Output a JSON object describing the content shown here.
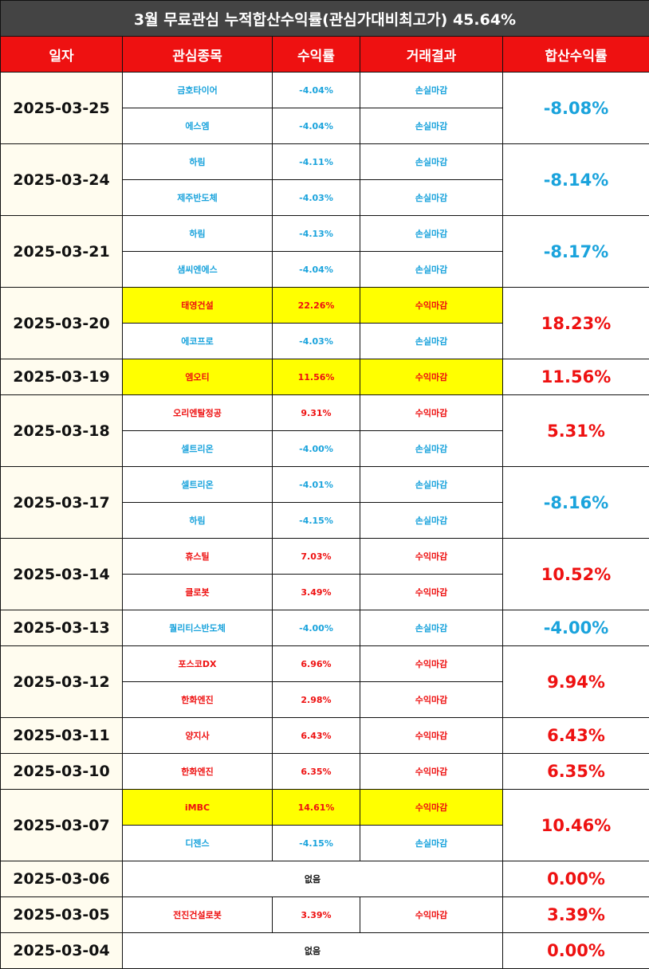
{
  "title": "3월 무료관심 누적합산수익률(관심가대비최고가) 45.64%",
  "header": [
    "일자",
    "관심종목",
    "수익률",
    "거래결과",
    "합산수익률"
  ],
  "rows": [
    {
      "date": "2025-03-25",
      "total": "-8.08%",
      "total_color": "#1aa3dc",
      "items": [
        {
          "stock": "금호타이어",
          "return": "-4.04%",
          "result": "손실마감",
          "color": "#1aa3dc"
        },
        {
          "stock": "에스엠",
          "return": "-4.04%",
          "result": "손실마감",
          "color": "#1aa3dc"
        }
      ]
    },
    {
      "date": "2025-03-24",
      "total": "-8.14%",
      "total_color": "#1aa3dc",
      "items": [
        {
          "stock": "하림",
          "return": "-4.11%",
          "result": "손실마감",
          "color": "#1aa3dc"
        },
        {
          "stock": "제주반도체",
          "return": "-4.03%",
          "result": "손실마감",
          "color": "#1aa3dc"
        }
      ]
    },
    {
      "date": "2025-03-21",
      "total": "-8.17%",
      "total_color": "#1aa3dc",
      "items": [
        {
          "stock": "하림",
          "return": "-4.13%",
          "result": "손실마감",
          "color": "#1aa3dc"
        },
        {
          "stock": "샘씨엔에스",
          "return": "-4.04%",
          "result": "손실마감",
          "color": "#1aa3dc"
        }
      ]
    },
    {
      "date": "2025-03-20",
      "total": "18.23%",
      "total_color": "#ee1111",
      "items": [
        {
          "stock": "태영건설",
          "return": "22.26%",
          "result": "수익마감",
          "color": "#ee1111",
          "highlight": true
        },
        {
          "stock": "에코프로",
          "return": "-4.03%",
          "result": "손실마감",
          "color": "#1aa3dc"
        }
      ]
    },
    {
      "date": "2025-03-19",
      "total": "11.56%",
      "total_color": "#ee1111",
      "items": [
        {
          "stock": "엠오티",
          "return": "11.56%",
          "result": "수익마감",
          "color": "#ee1111",
          "highlight": true
        }
      ]
    },
    {
      "date": "2025-03-18",
      "total": "5.31%",
      "total_color": "#ee1111",
      "items": [
        {
          "stock": "오리엔탈정공",
          "return": "9.31%",
          "result": "수익마감",
          "color": "#ee1111"
        },
        {
          "stock": "셀트리온",
          "return": "-4.00%",
          "result": "손실마감",
          "color": "#1aa3dc"
        }
      ]
    },
    {
      "date": "2025-03-17",
      "total": "-8.16%",
      "total_color": "#1aa3dc",
      "items": [
        {
          "stock": "셀트리온",
          "return": "-4.01%",
          "result": "손실마감",
          "color": "#1aa3dc"
        },
        {
          "stock": "하림",
          "return": "-4.15%",
          "result": "손실마감",
          "color": "#1aa3dc"
        }
      ]
    },
    {
      "date": "2025-03-14",
      "total": "10.52%",
      "total_color": "#ee1111",
      "items": [
        {
          "stock": "휴스틸",
          "return": "7.03%",
          "result": "수익마감",
          "color": "#ee1111"
        },
        {
          "stock": "클로봇",
          "return": "3.49%",
          "result": "수익마감",
          "color": "#ee1111"
        }
      ]
    },
    {
      "date": "2025-03-13",
      "total": "-4.00%",
      "total_color": "#1aa3dc",
      "items": [
        {
          "stock": "퀄리티스반도체",
          "return": "-4.00%",
          "result": "손실마감",
          "color": "#1aa3dc"
        }
      ]
    },
    {
      "date": "2025-03-12",
      "total": "9.94%",
      "total_color": "#ee1111",
      "items": [
        {
          "stock": "포스코DX",
          "return": "6.96%",
          "result": "수익마감",
          "color": "#ee1111"
        },
        {
          "stock": "한화엔진",
          "return": "2.98%",
          "result": "수익마감",
          "color": "#ee1111"
        }
      ]
    },
    {
      "date": "2025-03-11",
      "total": "6.43%",
      "total_color": "#ee1111",
      "items": [
        {
          "stock": "양지사",
          "return": "6.43%",
          "result": "수익마감",
          "color": "#ee1111"
        }
      ]
    },
    {
      "date": "2025-03-10",
      "total": "6.35%",
      "total_color": "#ee1111",
      "items": [
        {
          "stock": "한화엔진",
          "return": "6.35%",
          "result": "수익마감",
          "color": "#ee1111"
        }
      ]
    },
    {
      "date": "2025-03-07",
      "total": "10.46%",
      "total_color": "#ee1111",
      "items": [
        {
          "stock": "iMBC",
          "return": "14.61%",
          "result": "수익마감",
          "color": "#ee1111",
          "highlight": true
        },
        {
          "stock": "디젠스",
          "return": "-4.15%",
          "result": "손실마감",
          "color": "#1aa3dc"
        }
      ]
    },
    {
      "date": "2025-03-06",
      "total": "0.00%",
      "total_color": "#ee1111",
      "note": "없음"
    },
    {
      "date": "2025-03-05",
      "total": "3.39%",
      "total_color": "#ee1111",
      "items": [
        {
          "stock": "전진건설로봇",
          "return": "3.39%",
          "result": "수익마감",
          "color": "#ee1111"
        }
      ]
    },
    {
      "date": "2025-03-04",
      "total": "0.00%",
      "total_color": "#ee1111",
      "note": "없음"
    }
  ]
}
